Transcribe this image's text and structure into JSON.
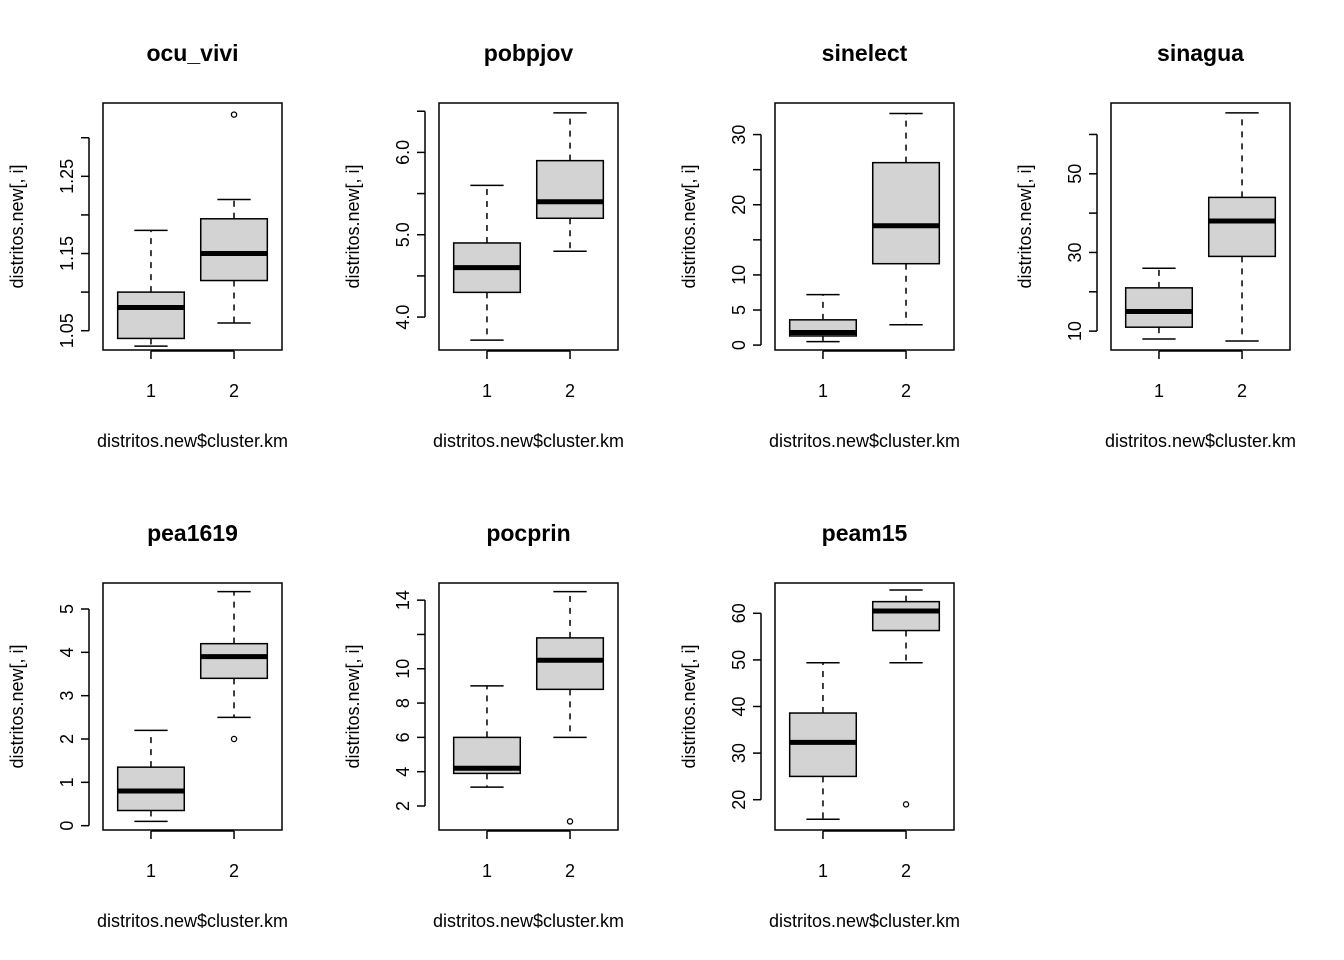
{
  "chart_data": [
    {
      "type": "boxplot",
      "title": "ocu_vivi",
      "xlabel": "distritos.new$cluster.km",
      "ylabel": "distritos.new[, i]",
      "categories": [
        "1",
        "2"
      ],
      "ylim": [
        1.025,
        1.345
      ],
      "yticks": [
        1.05,
        1.1,
        1.15,
        1.2,
        1.25,
        1.3
      ],
      "yticklabels": [
        "1.05",
        "",
        "1.15",
        "",
        "1.25",
        ""
      ],
      "boxes": [
        {
          "category": "1",
          "min": 1.03,
          "q1": 1.04,
          "median": 1.08,
          "q3": 1.1,
          "max": 1.18,
          "outliers": []
        },
        {
          "category": "2",
          "min": 1.06,
          "q1": 1.115,
          "median": 1.15,
          "q3": 1.195,
          "max": 1.22,
          "outliers": [
            1.33
          ]
        }
      ]
    },
    {
      "type": "boxplot",
      "title": "pobpjov",
      "xlabel": "distritos.new$cluster.km",
      "ylabel": "distritos.new[, i]",
      "categories": [
        "1",
        "2"
      ],
      "ylim": [
        3.6,
        6.6
      ],
      "yticks": [
        4.0,
        4.5,
        5.0,
        5.5,
        6.0,
        6.5
      ],
      "yticklabels": [
        "4.0",
        "",
        "5.0",
        "",
        "6.0",
        ""
      ],
      "boxes": [
        {
          "category": "1",
          "min": 3.72,
          "q1": 4.3,
          "median": 4.6,
          "q3": 4.9,
          "max": 5.6,
          "outliers": []
        },
        {
          "category": "2",
          "min": 4.8,
          "q1": 5.2,
          "median": 5.4,
          "q3": 5.9,
          "max": 6.48,
          "outliers": []
        }
      ]
    },
    {
      "type": "boxplot",
      "title": "sinelect",
      "xlabel": "distritos.new$cluster.km",
      "ylabel": "distritos.new[, i]",
      "categories": [
        "1",
        "2"
      ],
      "ylim": [
        -0.7,
        34.5
      ],
      "yticks": [
        0,
        5,
        10,
        15,
        20,
        25,
        30
      ],
      "yticklabels": [
        "0",
        "5",
        "10",
        "",
        "20",
        "",
        "30"
      ],
      "boxes": [
        {
          "category": "1",
          "min": 0.5,
          "q1": 1.3,
          "median": 1.8,
          "q3": 3.6,
          "max": 7.2,
          "outliers": []
        },
        {
          "category": "2",
          "min": 2.9,
          "q1": 11.6,
          "median": 17.0,
          "q3": 26.0,
          "max": 33.0,
          "outliers": []
        }
      ]
    },
    {
      "type": "boxplot",
      "title": "sinagua",
      "xlabel": "distritos.new$cluster.km",
      "ylabel": "distritos.new[, i]",
      "categories": [
        "1",
        "2"
      ],
      "ylim": [
        5.2,
        68.0
      ],
      "yticks": [
        10,
        20,
        30,
        40,
        50,
        60
      ],
      "yticklabels": [
        "10",
        "",
        "30",
        "",
        "50",
        ""
      ],
      "boxes": [
        {
          "category": "1",
          "min": 8.0,
          "q1": 11.0,
          "median": 15.0,
          "q3": 21.0,
          "max": 26.0,
          "outliers": []
        },
        {
          "category": "2",
          "min": 7.5,
          "q1": 29.0,
          "median": 38.0,
          "q3": 44.0,
          "max": 65.5,
          "outliers": []
        }
      ]
    },
    {
      "type": "boxplot",
      "title": "pea1619",
      "xlabel": "distritos.new$cluster.km",
      "ylabel": "distritos.new[, i]",
      "categories": [
        "1",
        "2"
      ],
      "ylim": [
        -0.1,
        5.6
      ],
      "yticks": [
        0,
        1,
        2,
        3,
        4,
        5
      ],
      "yticklabels": [
        "0",
        "1",
        "2",
        "3",
        "4",
        "5"
      ],
      "boxes": [
        {
          "category": "1",
          "min": 0.1,
          "q1": 0.35,
          "median": 0.8,
          "q3": 1.35,
          "max": 2.2,
          "outliers": []
        },
        {
          "category": "2",
          "min": 2.5,
          "q1": 3.4,
          "median": 3.9,
          "q3": 4.2,
          "max": 5.4,
          "outliers": [
            2.0
          ]
        }
      ]
    },
    {
      "type": "boxplot",
      "title": "pocprin",
      "xlabel": "distritos.new$cluster.km",
      "ylabel": "distritos.new[, i]",
      "categories": [
        "1",
        "2"
      ],
      "ylim": [
        0.6,
        15.0
      ],
      "yticks": [
        2,
        4,
        6,
        8,
        10,
        12,
        14
      ],
      "yticklabels": [
        "2",
        "4",
        "6",
        "8",
        "10",
        "",
        "14"
      ],
      "boxes": [
        {
          "category": "1",
          "min": 3.1,
          "q1": 3.9,
          "median": 4.2,
          "q3": 6.0,
          "max": 9.0,
          "outliers": []
        },
        {
          "category": "2",
          "min": 6.0,
          "q1": 8.8,
          "median": 10.5,
          "q3": 11.8,
          "max": 14.5,
          "outliers": [
            1.1
          ]
        }
      ]
    },
    {
      "type": "boxplot",
      "title": "peam15",
      "xlabel": "distritos.new$cluster.km",
      "ylabel": "distritos.new[, i]",
      "categories": [
        "1",
        "2"
      ],
      "ylim": [
        13.5,
        66.5
      ],
      "yticks": [
        20,
        30,
        40,
        50,
        60
      ],
      "yticklabels": [
        "20",
        "30",
        "40",
        "50",
        "60"
      ],
      "boxes": [
        {
          "category": "1",
          "min": 15.8,
          "q1": 25.0,
          "median": 32.3,
          "q3": 38.6,
          "max": 49.4,
          "outliers": []
        },
        {
          "category": "2",
          "min": 49.4,
          "q1": 56.3,
          "median": 60.5,
          "q3": 62.5,
          "max": 65.0,
          "outliers": [
            19.0
          ]
        }
      ]
    }
  ]
}
